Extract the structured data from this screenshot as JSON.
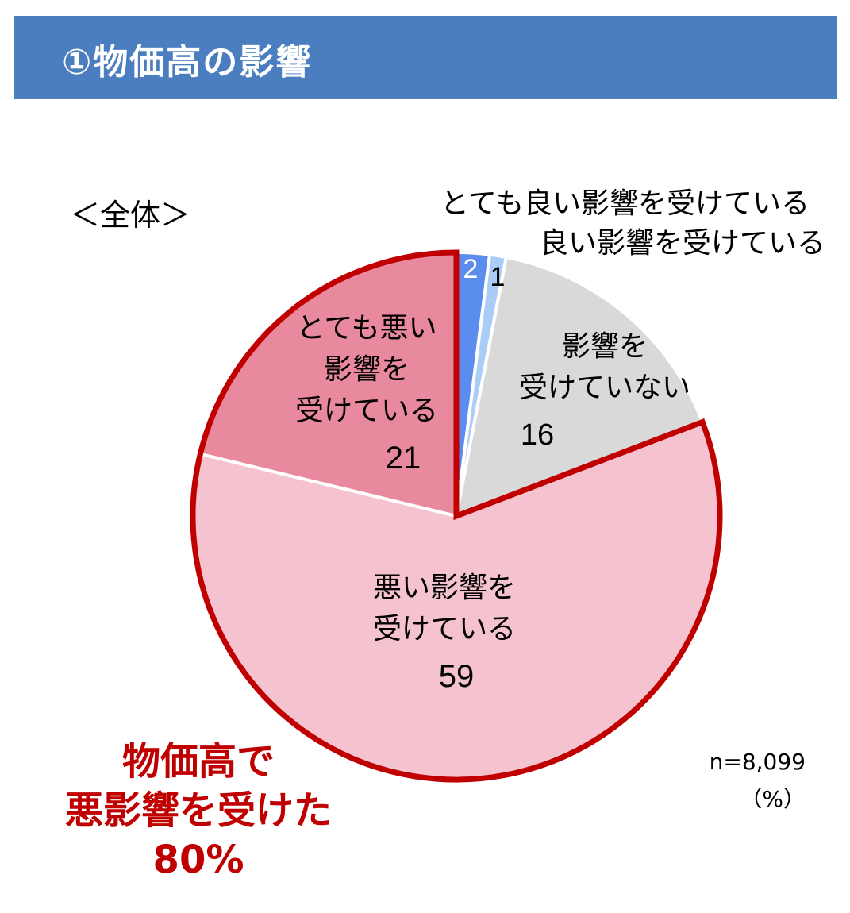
{
  "header": {
    "title": "①物価高の影響"
  },
  "subtitle": "＜全体＞",
  "sample_note": "n=8,099",
  "unit_note": "（%）",
  "callout": {
    "line1": "物価高で",
    "line2": "悪影響を受けた",
    "line3": "80%"
  },
  "colors": {
    "header_bg": "#4a7ebe",
    "very_good": "#5b8def",
    "good": "#a9cdf7",
    "none": "#d9d9d9",
    "bad": "#f5c2cf",
    "very_bad": "#e8899e",
    "highlight_border": "#c00000"
  },
  "chart_data": {
    "type": "pie",
    "start": "12 o'clock, clockwise",
    "slices": [
      {
        "key": "very_good",
        "label_lines": [
          "とても良い影響を受けている"
        ],
        "value": 2
      },
      {
        "key": "good",
        "label_lines": [
          "良い影響を受けている"
        ],
        "value": 1
      },
      {
        "key": "none",
        "label_lines": [
          "影響を",
          "受けていない"
        ],
        "value": 16
      },
      {
        "key": "bad",
        "label_lines": [
          "悪い影響を",
          "受けている"
        ],
        "value": 59
      },
      {
        "key": "very_bad",
        "label_lines": [
          "とても悪い",
          "影響を",
          "受けている"
        ],
        "value": 21
      }
    ],
    "highlighted_slices": [
      "bad",
      "very_bad"
    ]
  }
}
